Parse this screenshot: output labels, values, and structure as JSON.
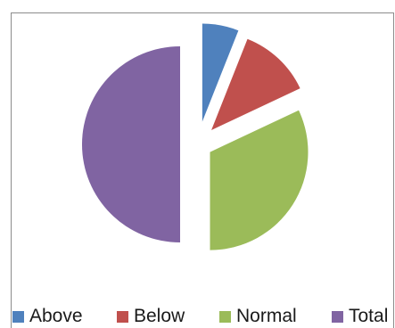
{
  "chart_data": {
    "type": "pie",
    "exploded": true,
    "legend_position": "bottom",
    "slices": [
      {
        "name": "Above",
        "value": 6,
        "color": "#4f81bd"
      },
      {
        "name": "Below",
        "value": 12,
        "color": "#c0504d"
      },
      {
        "name": "Normal",
        "value": 32,
        "color": "#9bbb59"
      },
      {
        "name": "Total",
        "value": 50,
        "color": "#8064a2"
      }
    ]
  },
  "legend": {
    "items": [
      {
        "label": "Above",
        "color": "#4f81bd"
      },
      {
        "label": "Below",
        "color": "#c0504d"
      },
      {
        "label": "Normal",
        "color": "#9bbb59"
      },
      {
        "label": "Total",
        "color": "#8064a2"
      }
    ]
  }
}
